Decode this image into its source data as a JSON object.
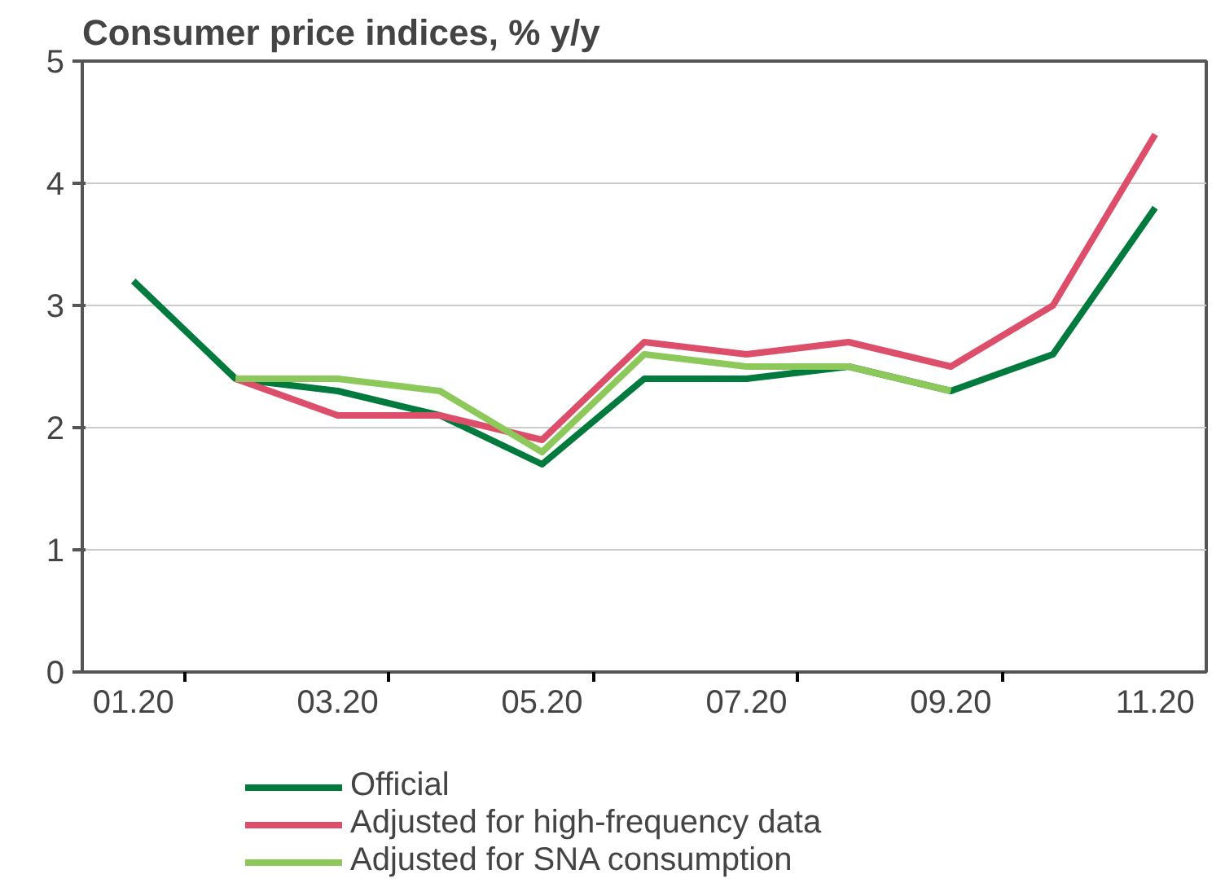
{
  "chart_data": {
    "type": "line",
    "title": "Consumer price indices, % y/y",
    "categories": [
      "01.20",
      null,
      "03.20",
      null,
      "05.20",
      null,
      "07.20",
      null,
      "09.20",
      null,
      "11.20"
    ],
    "series": [
      {
        "name": "Official",
        "color": "#007a3d",
        "values": [
          3.2,
          2.4,
          2.3,
          2.1,
          1.7,
          2.4,
          2.4,
          2.5,
          2.3,
          2.6,
          3.8
        ]
      },
      {
        "name": "Adjusted for high-frequency data",
        "color": "#dc4e69",
        "values": [
          null,
          2.4,
          2.1,
          2.1,
          1.9,
          2.7,
          2.6,
          2.7,
          2.5,
          3.0,
          4.4
        ]
      },
      {
        "name": "Adjusted for SNA consumption",
        "color": "#8cc85a",
        "values": [
          null,
          2.4,
          2.4,
          2.3,
          1.8,
          2.6,
          2.5,
          2.5,
          2.3,
          null,
          null
        ]
      }
    ],
    "ylim": [
      0,
      5
    ],
    "yticks": [
      0,
      1,
      2,
      3,
      4,
      5
    ],
    "grid": "y",
    "legend": "bottom"
  }
}
